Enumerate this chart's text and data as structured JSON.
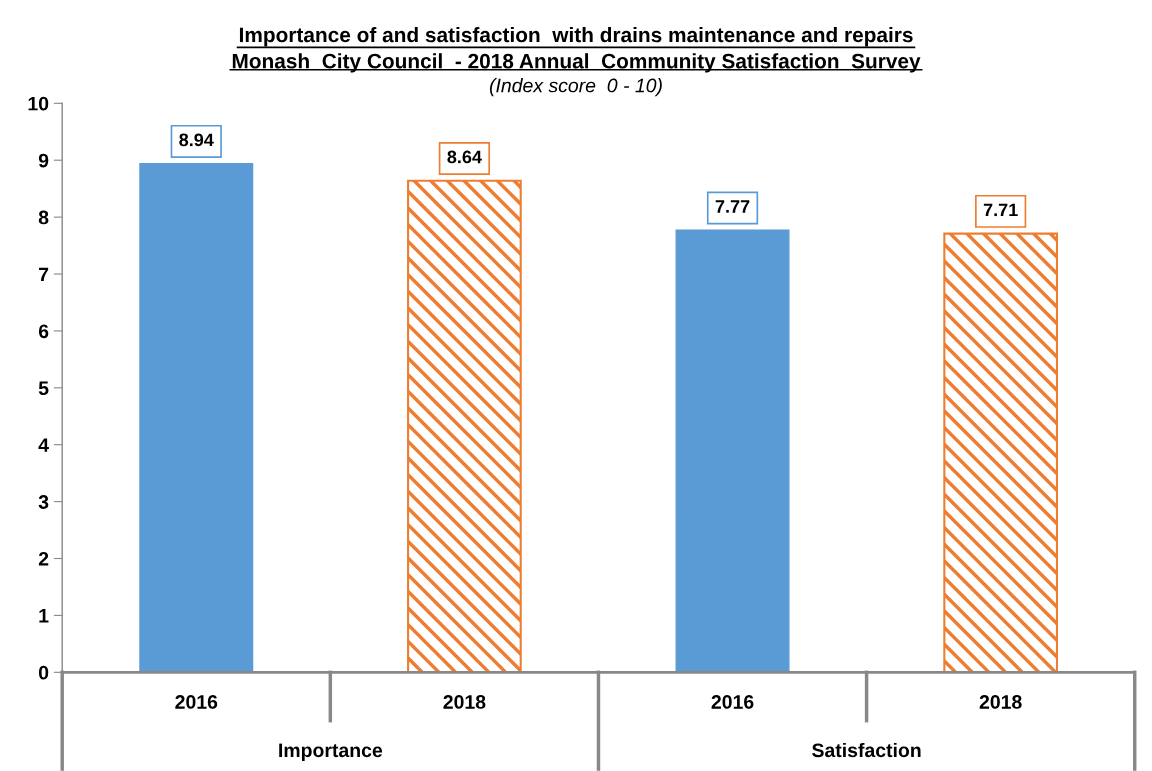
{
  "chart_data": {
    "type": "bar",
    "title": "Importance of and satisfaction  with drains maintenance and repairs\nMonash  City Council  - 2018 Annual  Community Satisfaction  Survey",
    "subtitle": "(Index score  0 - 10)",
    "categories": [
      "2016",
      "2018",
      "2016",
      "2018"
    ],
    "values": [
      8.94,
      8.64,
      7.77,
      7.71
    ],
    "colors": [
      "#5b9bd5",
      "#ed7d31",
      "#5b9bd5",
      "#ed7d31"
    ],
    "data_labels": true,
    "annotations": [
      "Importance",
      "Satisfaction"
    ],
    "ylim": [
      0,
      10
    ],
    "yticks": [
      0,
      1,
      2,
      3,
      4,
      5,
      6,
      7,
      8,
      9,
      10
    ],
    "grid": false,
    "legend": false
  }
}
